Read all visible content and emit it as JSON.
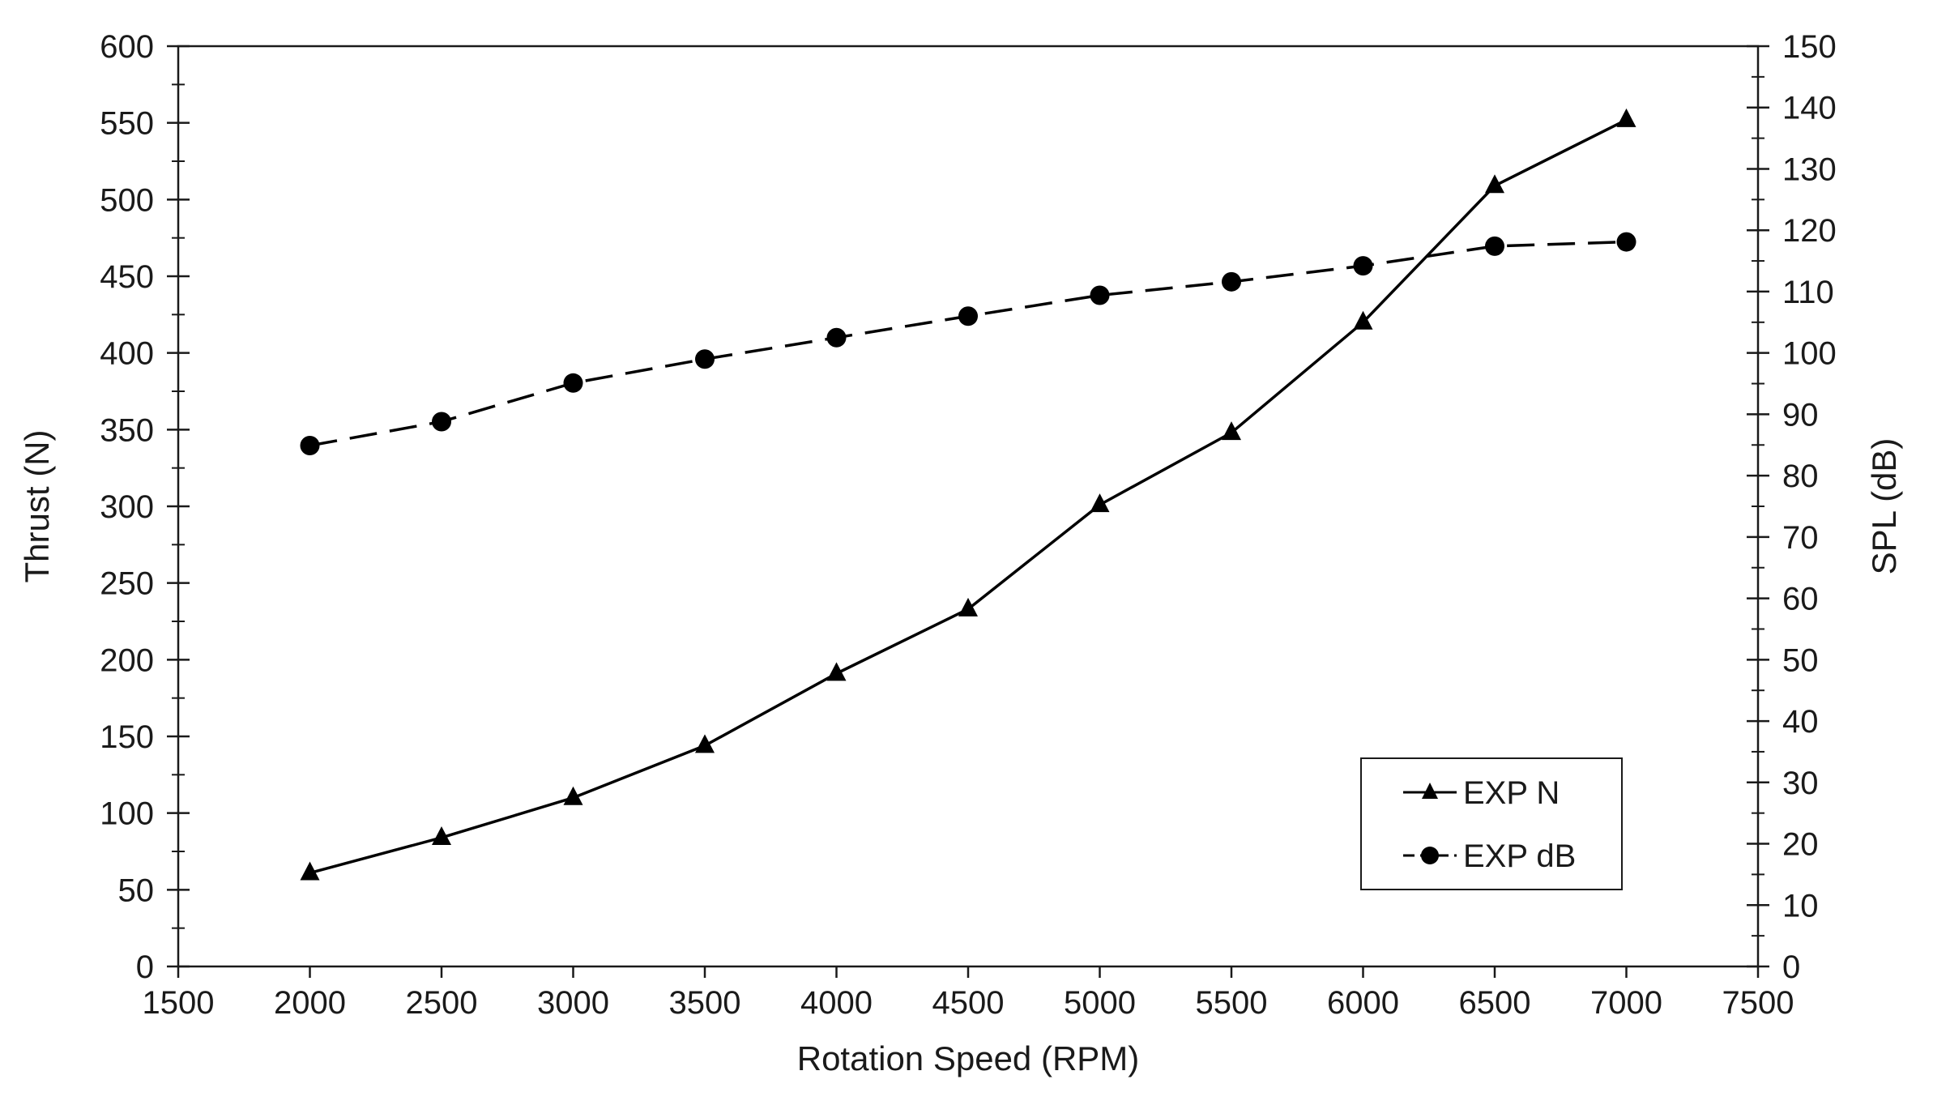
{
  "chart_data": {
    "type": "line",
    "xlabel": "Rotation Speed (RPM)",
    "ylabel": "Thrust (N)",
    "y2label": "SPL (dB)",
    "xlim": [
      1500,
      7500
    ],
    "xticks": [
      1500,
      2000,
      2500,
      3000,
      3500,
      4000,
      4500,
      5000,
      5500,
      6000,
      6500,
      7000,
      7500
    ],
    "ylim": [
      0,
      600
    ],
    "yticks": [
      0,
      50,
      100,
      150,
      200,
      250,
      300,
      350,
      400,
      450,
      500,
      550,
      600
    ],
    "y2lim": [
      0,
      150
    ],
    "y2ticks": [
      0,
      10,
      20,
      30,
      40,
      50,
      60,
      70,
      80,
      90,
      100,
      110,
      120,
      130,
      140,
      150
    ],
    "grid": false,
    "legend_position": "bottom-right",
    "x": [
      2000,
      2500,
      3000,
      3500,
      4000,
      4500,
      5000,
      5500,
      6000,
      6500,
      7000
    ],
    "series": [
      {
        "name": "EXP N",
        "axis": "left",
        "marker": "triangle",
        "line_style": "solid",
        "color": "#000000",
        "values": [
          61,
          84,
          110,
          144,
          191,
          233,
          301,
          348,
          420,
          509,
          552
        ]
      },
      {
        "name": "EXP dB",
        "axis": "right",
        "marker": "circle",
        "line_style": "dashed",
        "color": "#000000",
        "values": [
          84.9,
          88.8,
          95.1,
          99.0,
          102.5,
          106.0,
          109.4,
          111.6,
          114.2,
          117.4,
          118.1
        ]
      }
    ]
  }
}
